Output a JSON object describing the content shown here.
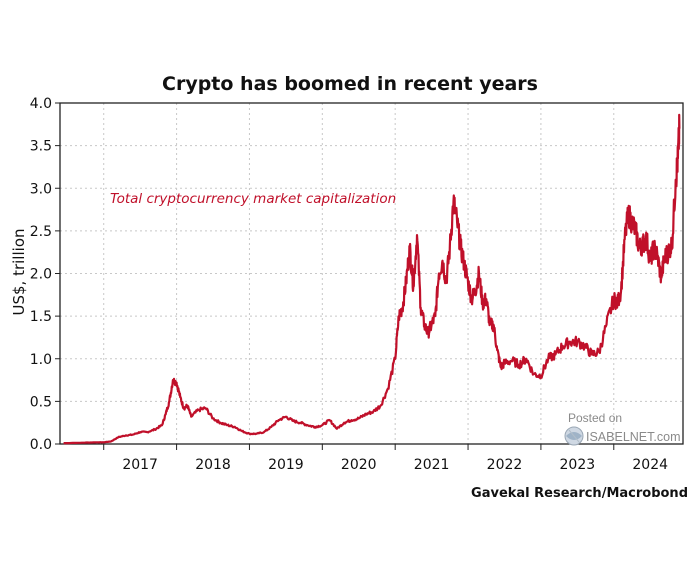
{
  "chart_data": {
    "type": "line",
    "title": "Crypto has boomed in recent years",
    "ylabel": "US$, trillion",
    "xlabel": "",
    "ylim": [
      0,
      4.0
    ],
    "yticks": [
      "0.0",
      "0.5",
      "1.0",
      "1.5",
      "2.0",
      "2.5",
      "3.0",
      "3.5",
      "4.0"
    ],
    "xlim": [
      2016.4,
      2024.95
    ],
    "xticks": [
      "2017",
      "2018",
      "2019",
      "2020",
      "2021",
      "2022",
      "2023",
      "2024"
    ],
    "grid": true,
    "annotation": "Total cryptocurrency market capitalization",
    "source": "Gavekal Research/Macrobond",
    "color": "#c0102a",
    "series": [
      {
        "name": "Total cryptocurrency market capitalization",
        "x": [
          2016.45,
          2016.7,
          2016.9,
          2017.0,
          2017.1,
          2017.2,
          2017.3,
          2017.4,
          2017.5,
          2017.6,
          2017.7,
          2017.8,
          2017.85,
          2017.9,
          2017.95,
          2018.0,
          2018.05,
          2018.1,
          2018.15,
          2018.2,
          2018.3,
          2018.4,
          2018.5,
          2018.6,
          2018.7,
          2018.8,
          2018.9,
          2019.0,
          2019.1,
          2019.2,
          2019.3,
          2019.4,
          2019.5,
          2019.6,
          2019.7,
          2019.8,
          2019.9,
          2020.0,
          2020.1,
          2020.2,
          2020.3,
          2020.4,
          2020.5,
          2020.6,
          2020.7,
          2020.8,
          2020.9,
          2021.0,
          2021.05,
          2021.1,
          2021.15,
          2021.2,
          2021.25,
          2021.3,
          2021.35,
          2021.4,
          2021.45,
          2021.5,
          2021.55,
          2021.6,
          2021.65,
          2021.7,
          2021.75,
          2021.8,
          2021.85,
          2021.9,
          2021.95,
          2022.0,
          2022.05,
          2022.1,
          2022.15,
          2022.2,
          2022.25,
          2022.3,
          2022.35,
          2022.4,
          2022.45,
          2022.5,
          2022.6,
          2022.7,
          2022.8,
          2022.9,
          2023.0,
          2023.1,
          2023.2,
          2023.3,
          2023.4,
          2023.5,
          2023.6,
          2023.7,
          2023.8,
          2023.9,
          2024.0,
          2024.05,
          2024.1,
          2024.15,
          2024.2,
          2024.25,
          2024.3,
          2024.35,
          2024.4,
          2024.45,
          2024.5,
          2024.55,
          2024.6,
          2024.65,
          2024.7,
          2024.75,
          2024.8,
          2024.85,
          2024.88,
          2024.9
        ],
        "values": [
          0.01,
          0.015,
          0.02,
          0.02,
          0.03,
          0.08,
          0.1,
          0.11,
          0.14,
          0.14,
          0.17,
          0.22,
          0.35,
          0.5,
          0.75,
          0.72,
          0.55,
          0.42,
          0.45,
          0.32,
          0.4,
          0.42,
          0.3,
          0.25,
          0.22,
          0.2,
          0.15,
          0.12,
          0.12,
          0.14,
          0.2,
          0.28,
          0.32,
          0.27,
          0.25,
          0.22,
          0.2,
          0.22,
          0.28,
          0.18,
          0.25,
          0.28,
          0.3,
          0.35,
          0.38,
          0.45,
          0.65,
          1.0,
          1.5,
          1.6,
          1.9,
          2.3,
          1.85,
          2.45,
          1.6,
          1.4,
          1.3,
          1.4,
          1.5,
          2.0,
          2.15,
          1.9,
          2.3,
          2.85,
          2.6,
          2.3,
          2.1,
          1.9,
          1.7,
          1.8,
          2.0,
          1.65,
          1.7,
          1.4,
          1.4,
          1.1,
          0.9,
          0.95,
          0.98,
          0.93,
          1.0,
          0.82,
          0.8,
          1.0,
          1.05,
          1.15,
          1.2,
          1.2,
          1.15,
          1.05,
          1.08,
          1.4,
          1.7,
          1.65,
          1.8,
          2.4,
          2.7,
          2.6,
          2.5,
          2.3,
          2.35,
          2.4,
          2.15,
          2.3,
          2.2,
          1.95,
          2.2,
          2.25,
          2.35,
          3.1,
          3.35,
          3.7
        ]
      }
    ]
  },
  "watermark": {
    "line1": "Posted on",
    "line2": "ISABELNET.com",
    "icon": "globe-icon"
  }
}
